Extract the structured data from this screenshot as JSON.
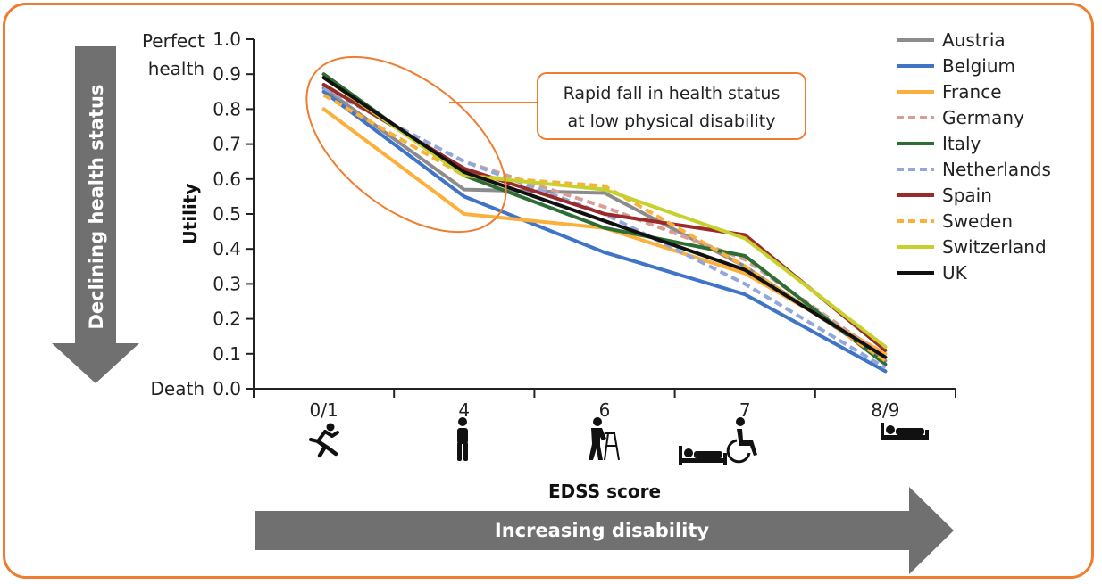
{
  "chart_data": {
    "type": "line",
    "x_label": "EDSS score",
    "y_label": "Utility",
    "categories": [
      "0/1",
      "4",
      "6",
      "7",
      "8/9"
    ],
    "y_ticks": [
      "0.0",
      "0.1",
      "0.2",
      "0.3",
      "0.4",
      "0.5",
      "0.6",
      "0.7",
      "0.8",
      "0.9",
      "1.0"
    ],
    "ylim": [
      0,
      1
    ],
    "y_top_label": [
      "Perfect",
      "health"
    ],
    "y_bottom_label": "Death",
    "series": [
      {
        "name": "Austria",
        "color": "#8c8c8c",
        "dash": false,
        "values": [
          0.86,
          0.57,
          0.56,
          0.35,
          0.08
        ]
      },
      {
        "name": "Belgium",
        "color": "#3f74c6",
        "dash": false,
        "values": [
          0.85,
          0.55,
          0.39,
          0.27,
          0.05
        ]
      },
      {
        "name": "France",
        "color": "#fbb03b",
        "dash": false,
        "values": [
          0.8,
          0.5,
          0.46,
          0.33,
          0.1
        ]
      },
      {
        "name": "Germany",
        "color": "#d4a095",
        "dash": true,
        "values": [
          0.86,
          0.65,
          0.52,
          0.37,
          0.09
        ]
      },
      {
        "name": "Italy",
        "color": "#2e6e34",
        "dash": false,
        "values": [
          0.9,
          0.61,
          0.46,
          0.38,
          0.07
        ]
      },
      {
        "name": "Netherlands",
        "color": "#92a8dc",
        "dash": true,
        "values": [
          0.86,
          0.65,
          0.5,
          0.3,
          0.06
        ]
      },
      {
        "name": "Spain",
        "color": "#9b2a2a",
        "dash": false,
        "values": [
          0.87,
          0.63,
          0.5,
          0.44,
          0.11
        ]
      },
      {
        "name": "Sweden",
        "color": "#fbb03b",
        "dash": true,
        "values": [
          0.84,
          0.61,
          0.58,
          0.35,
          0.08
        ]
      },
      {
        "name": "Switzerland",
        "color": "#c6d12b",
        "dash": false,
        "values": [
          0.89,
          0.61,
          0.57,
          0.43,
          0.12
        ]
      },
      {
        "name": "UK",
        "color": "#111111",
        "dash": false,
        "values": [
          0.89,
          0.62,
          0.48,
          0.34,
          0.09
        ]
      }
    ],
    "annotation": [
      "Rapid fall in health status",
      "at low physical disability"
    ],
    "left_arrow_label": "Declining health status",
    "bottom_arrow_label": "Increasing disability",
    "icons": [
      "running-person-icon",
      "standing-person-icon",
      "walker-person-icon",
      "wheelchair-icon",
      "bed-icons"
    ],
    "accent_color": "#f07c2e",
    "arrow_color": "#707070"
  }
}
